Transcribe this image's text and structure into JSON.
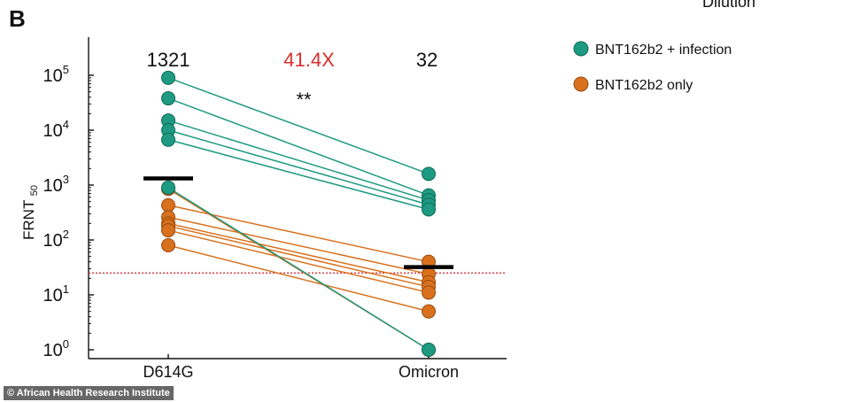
{
  "panel_letter": "B",
  "cropped_top_text": "Dilution",
  "credit": "© African Health Research Institute",
  "colors": {
    "infection": "#1f9a82",
    "infection_stroke": "#0d6b57",
    "only": "#d8711e",
    "only_stroke": "#9a4a0c",
    "threshold": "#d9303b",
    "fold_text": "#d8302e",
    "axis": "#111111"
  },
  "chart_data": {
    "type": "scatter",
    "title": "",
    "xlabel": "",
    "ylabel": "FRNT",
    "ylabel_sub": "50",
    "y_scale": "log10",
    "ylim": [
      1,
      100000
    ],
    "y_ticks": [
      {
        "value": 1,
        "base": "10",
        "exp": "0"
      },
      {
        "value": 10,
        "base": "10",
        "exp": "1"
      },
      {
        "value": 100,
        "base": "10",
        "exp": "2"
      },
      {
        "value": 1000,
        "base": "10",
        "exp": "3"
      },
      {
        "value": 10000,
        "base": "10",
        "exp": "4"
      },
      {
        "value": 100000,
        "base": "10",
        "exp": "5"
      }
    ],
    "categories": [
      "D614G",
      "Omicron"
    ],
    "geometric_means": {
      "D614G": 1321,
      "Omicron": 32
    },
    "gmt_labels": [
      "1321",
      "32"
    ],
    "fold_change": "41.4X",
    "significance": "**",
    "detection_limit": 25,
    "grid": false,
    "legend_position": "top-right",
    "legend": [
      {
        "label": "BNT162b2 + infection",
        "group": "infection"
      },
      {
        "label": "BNT162b2 only",
        "group": "only"
      }
    ],
    "pairs": [
      {
        "group": "infection",
        "d614g": 90000,
        "omicron": 1600
      },
      {
        "group": "infection",
        "d614g": 38000,
        "omicron": 650
      },
      {
        "group": "infection",
        "d614g": 15000,
        "omicron": 530
      },
      {
        "group": "infection",
        "d614g": 10000,
        "omicron": 440
      },
      {
        "group": "infection",
        "d614g": 6700,
        "omicron": 360
      },
      {
        "group": "infection",
        "d614g": 900,
        "omicron": 1
      },
      {
        "group": "only",
        "d614g": 850,
        "omicron": 1
      },
      {
        "group": "only",
        "d614g": 430,
        "omicron": 40
      },
      {
        "group": "only",
        "d614g": 260,
        "omicron": 24
      },
      {
        "group": "only",
        "d614g": 200,
        "omicron": 17
      },
      {
        "group": "only",
        "d614g": 180,
        "omicron": 14
      },
      {
        "group": "only",
        "d614g": 150,
        "omicron": 11
      },
      {
        "group": "only",
        "d614g": 80,
        "omicron": 5
      }
    ]
  }
}
